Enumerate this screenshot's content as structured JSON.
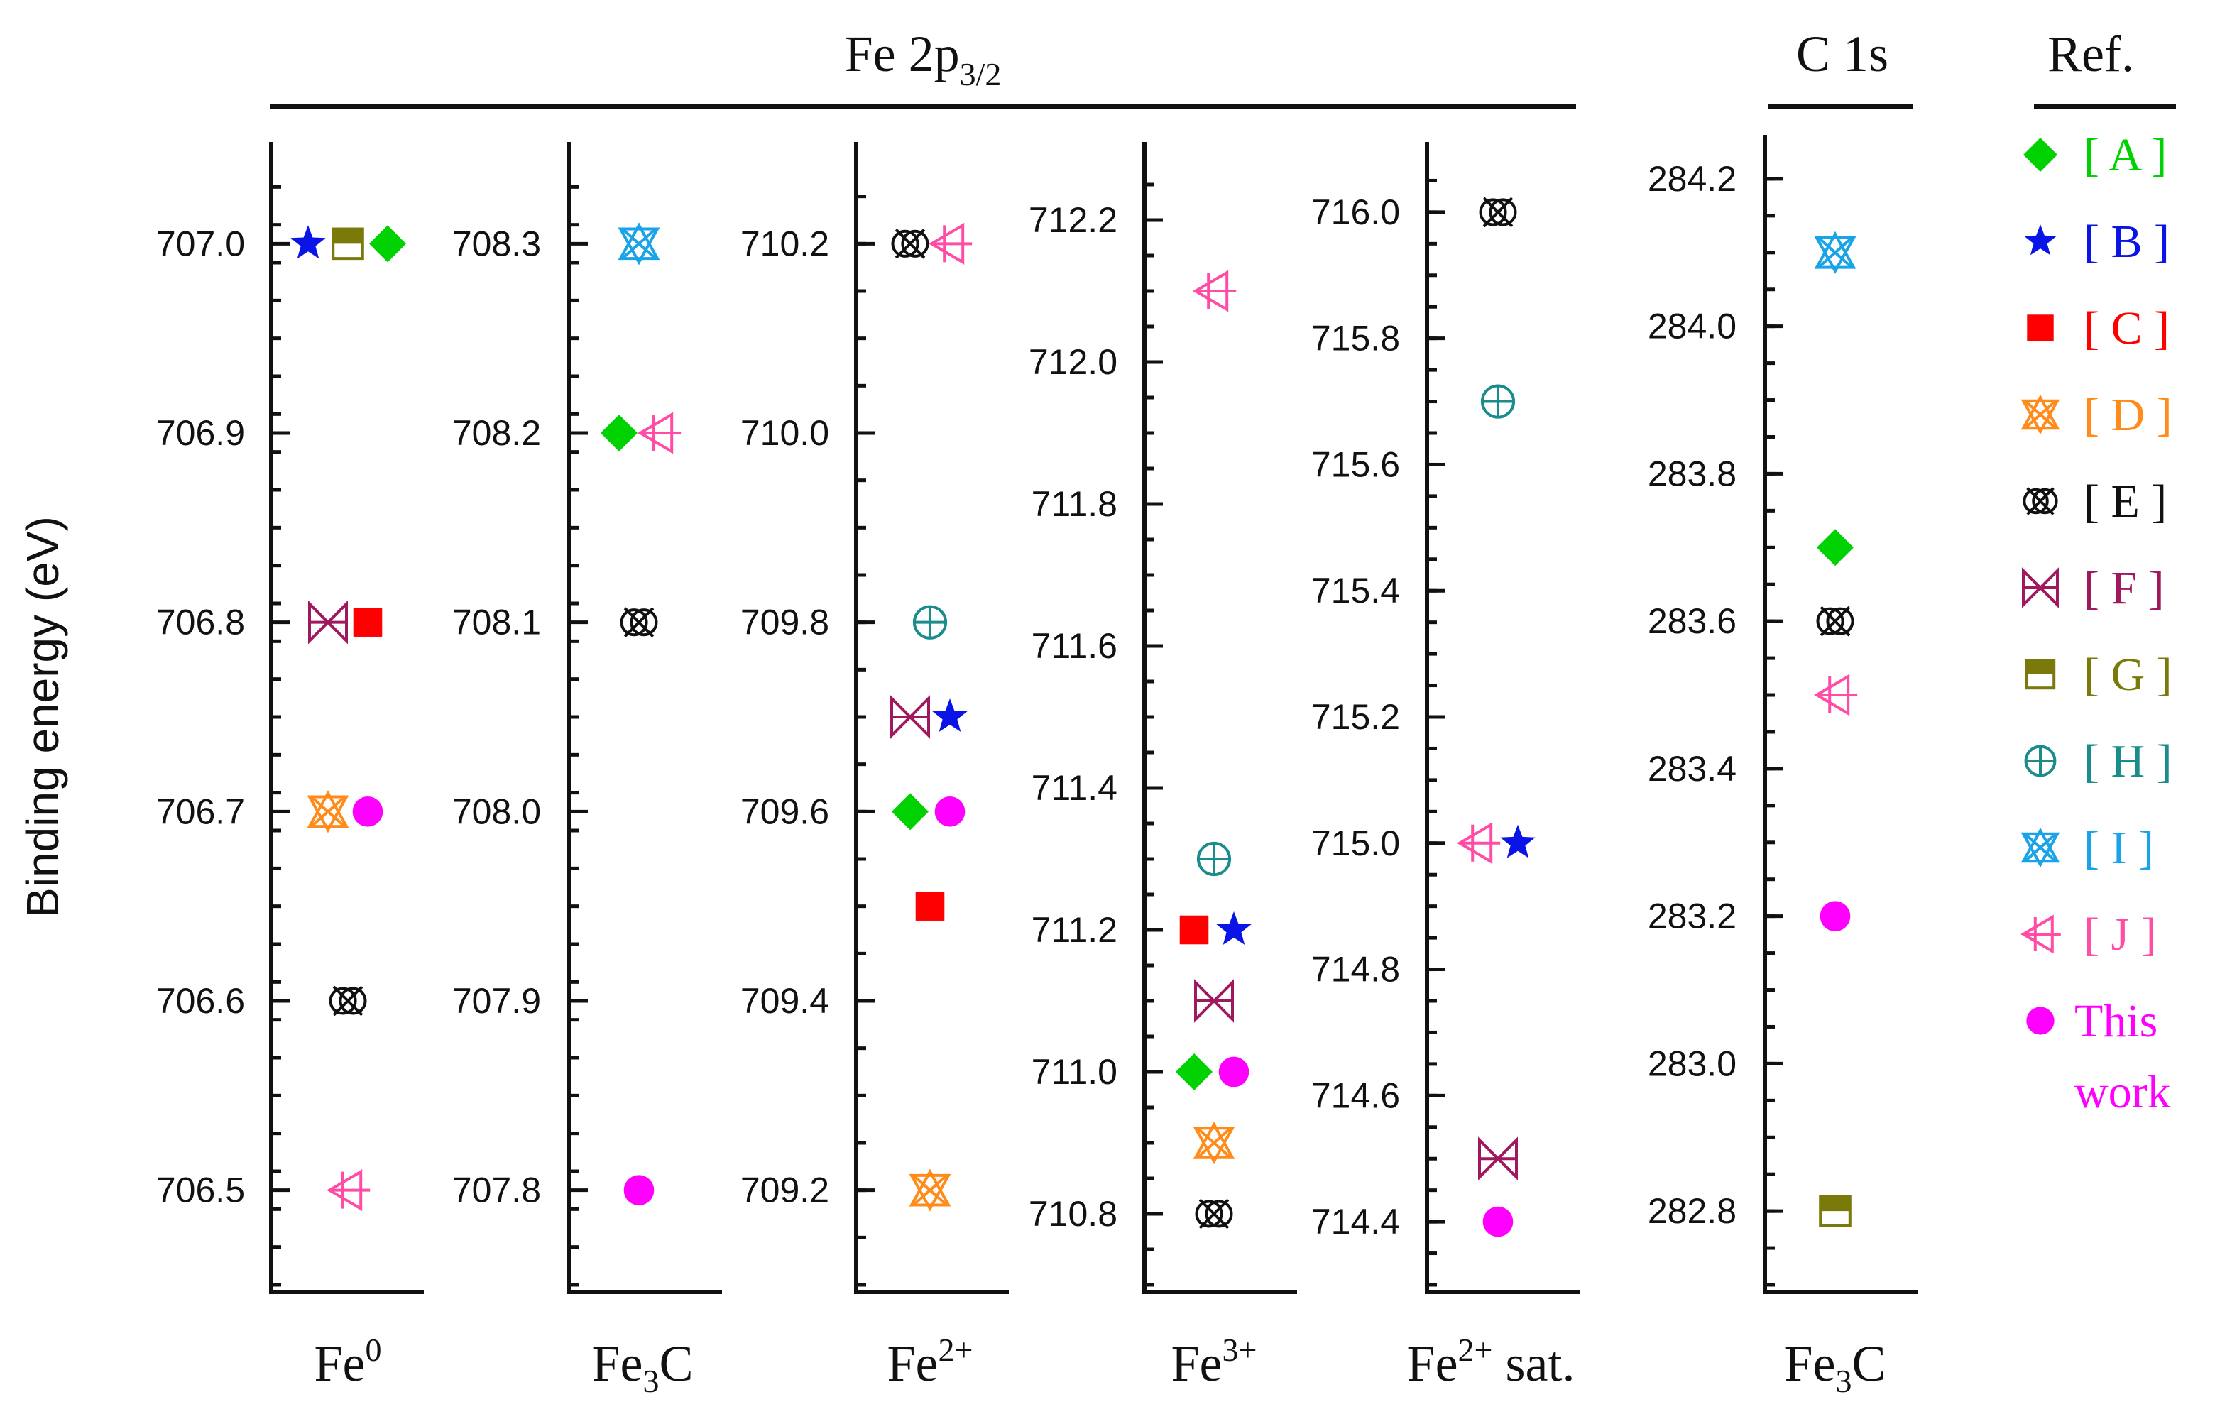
{
  "chart_data": {
    "type": "scatter",
    "ylabel": "Binding energy (eV)",
    "headers": [
      {
        "id": "fe2p",
        "text": "Fe 2p",
        "sub": "3/2"
      },
      {
        "id": "c1s",
        "text": "C 1s",
        "sub": ""
      },
      {
        "id": "ref",
        "text": "Ref.",
        "sub": ""
      }
    ],
    "references": [
      {
        "key": "A",
        "label": "[ A ]",
        "color": "#00d100",
        "marker": "diamond"
      },
      {
        "key": "B",
        "label": "[ B ]",
        "color": "#0a14e6",
        "marker": "star"
      },
      {
        "key": "C",
        "label": "[ C ]",
        "color": "#ff0000",
        "marker": "square"
      },
      {
        "key": "D",
        "label": "[ D ]",
        "color": "#ff8c1a",
        "marker": "tri-x"
      },
      {
        "key": "E",
        "label": "[ E ]",
        "color": "#111111",
        "marker": "circle-x"
      },
      {
        "key": "F",
        "label": "[ F ]",
        "color": "#a0185e",
        "marker": "bowtie-x"
      },
      {
        "key": "G",
        "label": "[ G ]",
        "color": "#7a7a0a",
        "marker": "half-square"
      },
      {
        "key": "H",
        "label": "[ H ]",
        "color": "#1a8c8c",
        "marker": "circle-plus"
      },
      {
        "key": "I",
        "label": "[ I ]",
        "color": "#1aa3e6",
        "marker": "tri-x-inv"
      },
      {
        "key": "J",
        "label": "[ J ]",
        "color": "#ff4da6",
        "marker": "tri-left"
      },
      {
        "key": "This",
        "label": "This work",
        "color": "#ff00ff",
        "marker": "circle"
      }
    ],
    "panels": [
      {
        "id": "fe0",
        "category": "Fe",
        "category_sup": "0",
        "category_sub": "",
        "ylim": [
          706.45,
          707.05
        ],
        "ticks": [
          706.5,
          706.6,
          706.7,
          706.8,
          706.9,
          707.0
        ],
        "points": [
          {
            "ref": "B",
            "value": 707.0
          },
          {
            "ref": "G",
            "value": 707.0
          },
          {
            "ref": "A",
            "value": 707.0
          },
          {
            "ref": "F",
            "value": 706.8
          },
          {
            "ref": "C",
            "value": 706.8
          },
          {
            "ref": "D",
            "value": 706.7
          },
          {
            "ref": "This",
            "value": 706.7
          },
          {
            "ref": "E",
            "value": 706.6
          },
          {
            "ref": "J",
            "value": 706.5
          }
        ]
      },
      {
        "id": "fe3c",
        "category": "Fe",
        "category_sup": "",
        "category_sub": "3",
        "category_tail": "C",
        "ylim": [
          707.75,
          708.35
        ],
        "ticks": [
          707.8,
          707.9,
          708.0,
          708.1,
          708.2,
          708.3
        ],
        "points": [
          {
            "ref": "I",
            "value": 708.3
          },
          {
            "ref": "A",
            "value": 708.2
          },
          {
            "ref": "J",
            "value": 708.2
          },
          {
            "ref": "E",
            "value": 708.1
          },
          {
            "ref": "This",
            "value": 707.8
          }
        ]
      },
      {
        "id": "fe2",
        "category": "Fe",
        "category_sup": "2+",
        "category_sub": "",
        "ylim": [
          709.1,
          710.3
        ],
        "ticks": [
          709.2,
          709.4,
          709.6,
          709.8,
          710.0,
          710.2
        ],
        "points": [
          {
            "ref": "E",
            "value": 710.2
          },
          {
            "ref": "J",
            "value": 710.2
          },
          {
            "ref": "H",
            "value": 709.8
          },
          {
            "ref": "F",
            "value": 709.7
          },
          {
            "ref": "B",
            "value": 709.7
          },
          {
            "ref": "A",
            "value": 709.6
          },
          {
            "ref": "This",
            "value": 709.6
          },
          {
            "ref": "C",
            "value": 709.5
          },
          {
            "ref": "D",
            "value": 709.2
          }
        ]
      },
      {
        "id": "fe3",
        "category": "Fe",
        "category_sup": "3+",
        "category_sub": "",
        "ylim": [
          710.7,
          712.3
        ],
        "ticks": [
          710.8,
          711.0,
          711.2,
          711.4,
          711.6,
          711.8,
          712.0,
          712.2
        ],
        "points": [
          {
            "ref": "J",
            "value": 712.1
          },
          {
            "ref": "H",
            "value": 711.3
          },
          {
            "ref": "C",
            "value": 711.2
          },
          {
            "ref": "B",
            "value": 711.2
          },
          {
            "ref": "F",
            "value": 711.1
          },
          {
            "ref": "A",
            "value": 711.0
          },
          {
            "ref": "This",
            "value": 711.0
          },
          {
            "ref": "D",
            "value": 710.9
          },
          {
            "ref": "E",
            "value": 710.8
          }
        ]
      },
      {
        "id": "fe2sat",
        "category": "Fe",
        "category_sup": "2+",
        "category_sub": "",
        "category_tail": " sat.",
        "ylim": [
          714.3,
          716.1
        ],
        "ticks": [
          714.4,
          714.6,
          714.8,
          715.0,
          715.2,
          715.4,
          715.6,
          715.8,
          716.0
        ],
        "points": [
          {
            "ref": "E",
            "value": 716.0
          },
          {
            "ref": "H",
            "value": 715.7
          },
          {
            "ref": "J",
            "value": 715.0
          },
          {
            "ref": "B",
            "value": 715.0
          },
          {
            "ref": "F",
            "value": 714.5
          },
          {
            "ref": "This",
            "value": 714.4
          }
        ]
      },
      {
        "id": "c1s_fe3c",
        "category": "Fe",
        "category_sup": "",
        "category_sub": "3",
        "category_tail": "C",
        "ylim": [
          282.7,
          284.25
        ],
        "ticks": [
          282.8,
          283.0,
          283.2,
          283.4,
          283.6,
          283.8,
          284.0,
          284.2
        ],
        "points": [
          {
            "ref": "I",
            "value": 284.1
          },
          {
            "ref": "A",
            "value": 283.7
          },
          {
            "ref": "E",
            "value": 283.6
          },
          {
            "ref": "J",
            "value": 283.5
          },
          {
            "ref": "This",
            "value": 283.2
          },
          {
            "ref": "G",
            "value": 282.8
          }
        ]
      }
    ]
  }
}
